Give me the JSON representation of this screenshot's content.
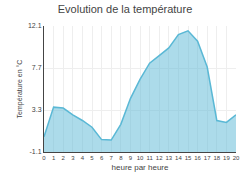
{
  "chart_data": {
    "type": "area",
    "title": "Evolution de la température",
    "xlabel": "heure par heure",
    "ylabel": "Température en °C",
    "x": [
      0,
      1,
      2,
      3,
      4,
      5,
      6,
      7,
      8,
      9,
      10,
      11,
      12,
      13,
      14,
      15,
      16,
      17,
      18,
      19,
      20
    ],
    "values": [
      0.5,
      3.6,
      3.5,
      2.8,
      2.2,
      1.5,
      0.2,
      0.15,
      1.8,
      4.5,
      6.5,
      8.2,
      9.0,
      9.8,
      11.2,
      11.6,
      10.5,
      7.8,
      2.2,
      2.0,
      2.8
    ],
    "color": "#5ab8d5",
    "xlim": [
      0,
      20
    ],
    "xticks": [
      0,
      1,
      2,
      3,
      4,
      5,
      6,
      7,
      8,
      9,
      10,
      11,
      12,
      13,
      14,
      15,
      16,
      17,
      18,
      19,
      20
    ],
    "ylim": [
      -1.1,
      12.1
    ],
    "yticks": [
      -1.1,
      3.3,
      7.7,
      12.1
    ],
    "grid": true
  }
}
